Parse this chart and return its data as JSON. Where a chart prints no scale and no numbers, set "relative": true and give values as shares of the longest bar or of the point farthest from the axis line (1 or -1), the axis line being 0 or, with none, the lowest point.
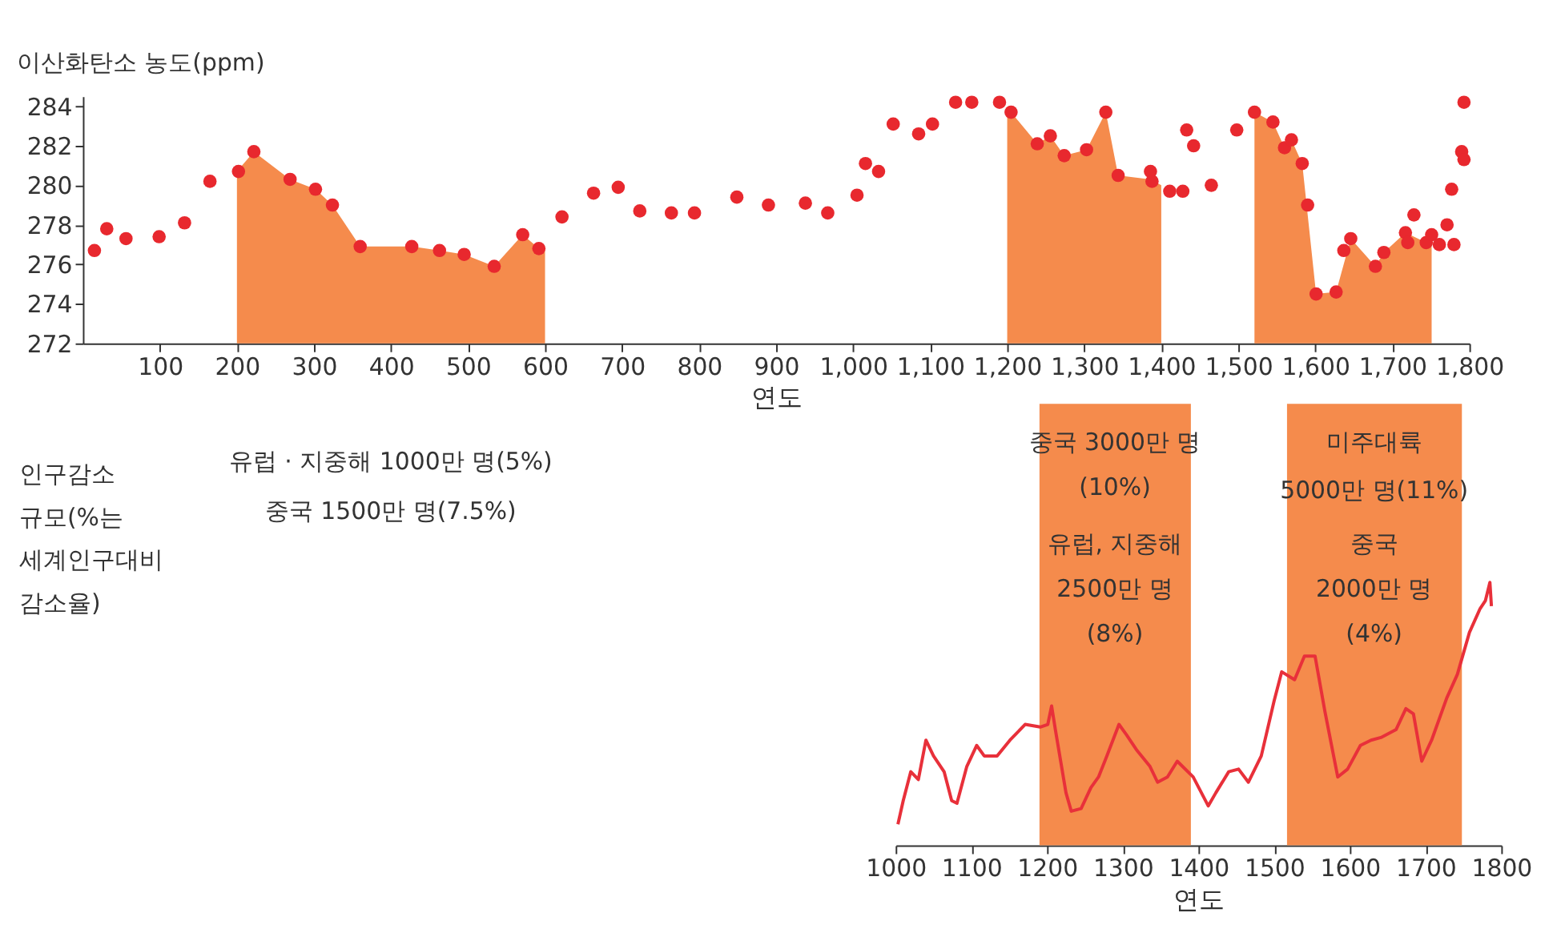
{
  "chart_data": [
    {
      "type": "scatter",
      "ylabel": "이산화탄소 농도(ppm)",
      "xlabel": "연도",
      "xlim": [
        0,
        1800
      ],
      "ylim": [
        272,
        284.5
      ],
      "xticks": [
        100,
        200,
        300,
        400,
        500,
        600,
        700,
        800,
        900,
        {
          "value": 1000,
          "label": "1,000"
        },
        {
          "value": 1100,
          "label": "1,100"
        },
        {
          "value": 1200,
          "label": "1,200"
        },
        {
          "value": 1300,
          "label": "1,300"
        },
        {
          "value": 1400,
          "label": "1,400"
        },
        {
          "value": 1500,
          "label": "1,500"
        },
        {
          "value": 1600,
          "label": "1,600"
        },
        {
          "value": 1700,
          "label": "1,700"
        },
        {
          "value": 1800,
          "label": "1,800"
        }
      ],
      "yticks": [
        272,
        274,
        276,
        278,
        280,
        282,
        284
      ],
      "grid": false,
      "series": [
        {
          "type": "area",
          "color": "#f58b4c",
          "x": [
            200,
            222,
            269,
            302,
            324,
            360,
            427,
            463,
            495,
            534,
            571,
            592,
            600
          ],
          "values": [
            280.7,
            281.7,
            280.3,
            279.8,
            279.0,
            276.9,
            276.9,
            276.7,
            276.5,
            275.9,
            277.5,
            276.8,
            276.8
          ]
        },
        {
          "type": "area",
          "color": "#f58b4c",
          "x": [
            1200,
            1205,
            1239,
            1256,
            1274,
            1303,
            1328,
            1344,
            1386,
            1400
          ],
          "values": [
            284.0,
            283.7,
            282.1,
            282.5,
            281.5,
            281.8,
            283.7,
            280.5,
            280.3,
            280.0
          ]
        },
        {
          "type": "area",
          "color": "#f58b4c",
          "x": [
            1521,
            1545,
            1560,
            1569,
            1583,
            1601,
            1627,
            1646,
            1678,
            1689,
            1717,
            1744,
            1751
          ],
          "values": [
            283.7,
            283.2,
            281.9,
            282.3,
            281.1,
            274.5,
            274.6,
            277.3,
            275.9,
            276.6,
            277.6,
            277.1,
            277.1
          ]
        },
        {
          "type": "scatter",
          "marker": "circle",
          "color": "#e8282e",
          "x": [
            15,
            31,
            56,
            99,
            132,
            165,
            202,
            222,
            269,
            302,
            324,
            360,
            427,
            463,
            495,
            534,
            571,
            592,
            622,
            663,
            695,
            723,
            764,
            794,
            849,
            890,
            938,
            967,
            1005,
            1016,
            1033,
            1052,
            1085,
            1103,
            1133,
            1154,
            1190,
            1205,
            1239,
            1256,
            1274,
            1303,
            1328,
            1344,
            1386,
            1388,
            1411,
            1428,
            1433,
            1442,
            1465,
            1498,
            1521,
            1545,
            1560,
            1569,
            1583,
            1590,
            1601,
            1627,
            1637,
            1646,
            1678,
            1689,
            1717,
            1720,
            1728,
            1744,
            1751,
            1761,
            1771,
            1780,
            1777,
            1790,
            1793,
            1793
          ],
          "values": [
            276.7,
            277.8,
            277.3,
            277.4,
            278.1,
            280.2,
            280.7,
            281.7,
            280.3,
            279.8,
            279.0,
            276.9,
            276.9,
            276.7,
            276.5,
            275.9,
            277.5,
            276.8,
            278.4,
            279.6,
            279.9,
            278.7,
            278.6,
            278.6,
            279.4,
            279.0,
            279.1,
            278.6,
            279.5,
            281.1,
            280.7,
            283.1,
            282.6,
            283.1,
            284.2,
            284.2,
            284.2,
            283.7,
            282.1,
            282.5,
            281.5,
            281.8,
            283.7,
            280.5,
            280.7,
            280.2,
            279.7,
            279.7,
            282.8,
            282.0,
            280.0,
            282.8,
            283.7,
            283.2,
            281.9,
            282.3,
            281.1,
            279.0,
            274.5,
            274.6,
            276.7,
            277.3,
            275.9,
            276.6,
            277.6,
            277.1,
            278.5,
            277.1,
            277.5,
            277.0,
            278.0,
            277.0,
            279.8,
            281.7,
            281.3,
            284.2
          ]
        }
      ],
      "annotations": [
        "유럽 · 지중해 1000만 명(5%)",
        "중국 1500만 명(7.5%)",
        "인구감소\n규모(%는\n세계인구대비\n감소율)"
      ]
    },
    {
      "type": "line",
      "relative": true,
      "xlabel": "연도",
      "xlim": [
        1000,
        1800
      ],
      "xticks": [
        1000,
        1100,
        1200,
        1300,
        1400,
        1500,
        1600,
        1700,
        1800
      ],
      "grid": false,
      "line_style": "solid",
      "series": [
        {
          "color": "#e8303a",
          "x": [
            1003,
            1010,
            1020,
            1030,
            1040,
            1050,
            1064,
            1074,
            1081,
            1094,
            1107,
            1117,
            1134,
            1151,
            1171,
            1191,
            1201,
            1206,
            1211,
            1225,
            1232,
            1245,
            1258,
            1268,
            1279,
            1295,
            1305,
            1319,
            1336,
            1346,
            1359,
            1372,
            1393,
            1413,
            1423,
            1440,
            1453,
            1466,
            1483,
            1500,
            1510,
            1527,
            1540,
            1554,
            1567,
            1584,
            1597,
            1614,
            1628,
            1641,
            1661,
            1674,
            1684,
            1695,
            1708,
            1728,
            1742,
            1758,
            1772,
            1779,
            1785,
            1787
          ],
          "values": [
            0.08,
            0.17,
            0.28,
            0.25,
            0.4,
            0.34,
            0.28,
            0.17,
            0.16,
            0.3,
            0.38,
            0.34,
            0.34,
            0.4,
            0.46,
            0.45,
            0.46,
            0.53,
            0.44,
            0.2,
            0.13,
            0.14,
            0.22,
            0.26,
            0.34,
            0.46,
            0.42,
            0.36,
            0.3,
            0.24,
            0.26,
            0.32,
            0.26,
            0.15,
            0.2,
            0.28,
            0.29,
            0.24,
            0.34,
            0.55,
            0.66,
            0.63,
            0.72,
            0.72,
            0.51,
            0.26,
            0.29,
            0.38,
            0.4,
            0.41,
            0.44,
            0.52,
            0.5,
            0.32,
            0.4,
            0.56,
            0.65,
            0.81,
            0.9,
            0.93,
            1.0,
            0.91
          ]
        }
      ],
      "bands": [
        {
          "axis": "x",
          "from": 1190,
          "to": 1390,
          "color": "#f58b4c"
        },
        {
          "axis": "x",
          "from": 1517,
          "to": 1748,
          "color": "#f58b4c"
        }
      ],
      "annotations": [
        "중국 3000만 명\n(10%)",
        "유럽, 지중해\n2500만 명\n(8%)",
        "미주대륙\n5000만 명(11%)",
        "중국\n2000만 명\n(4%)"
      ]
    }
  ]
}
